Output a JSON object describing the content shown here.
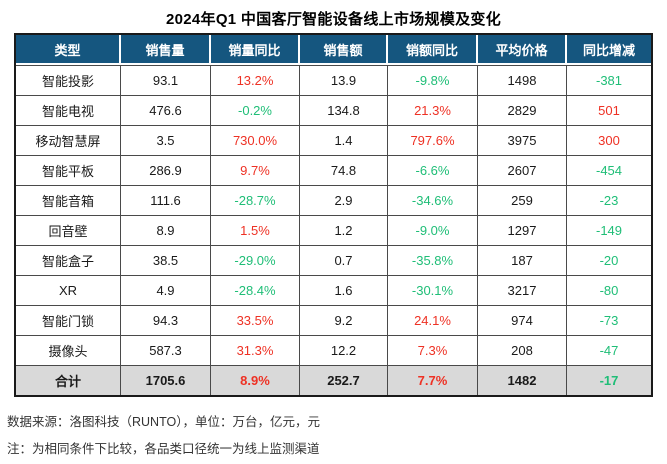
{
  "title": "2024年Q1 中国客厅智能设备线上市场规模及变化",
  "colors": {
    "header_bg": "#15567F",
    "header_text": "#FFFFFF",
    "increase_red": "#EE3124",
    "decrease_green": "#1FBE77",
    "total_row_bg": "#D9D9D9",
    "border_dark": "#1A1A1A"
  },
  "table": {
    "headers": [
      "类型",
      "销售量",
      "销量同比",
      "销售额",
      "销额同比",
      "平均价格",
      "同比增减"
    ],
    "rows": [
      {
        "cells": [
          "智能投影",
          "93.1",
          "13.2%",
          "13.9",
          "-9.8%",
          "1498",
          "-381"
        ],
        "colors": [
          "",
          "",
          "red",
          "",
          "green",
          "",
          "green"
        ]
      },
      {
        "cells": [
          "智能电视",
          "476.6",
          "-0.2%",
          "134.8",
          "21.3%",
          "2829",
          "501"
        ],
        "colors": [
          "",
          "",
          "green",
          "",
          "red",
          "",
          "red"
        ]
      },
      {
        "cells": [
          "移动智慧屏",
          "3.5",
          "730.0%",
          "1.4",
          "797.6%",
          "3975",
          "300"
        ],
        "colors": [
          "",
          "",
          "red",
          "",
          "red",
          "",
          "red"
        ]
      },
      {
        "cells": [
          "智能平板",
          "286.9",
          "9.7%",
          "74.8",
          "-6.6%",
          "2607",
          "-454"
        ],
        "colors": [
          "",
          "",
          "red",
          "",
          "green",
          "",
          "green"
        ]
      },
      {
        "cells": [
          "智能音箱",
          "111.6",
          "-28.7%",
          "2.9",
          "-34.6%",
          "259",
          "-23"
        ],
        "colors": [
          "",
          "",
          "green",
          "",
          "green",
          "",
          "green"
        ]
      },
      {
        "cells": [
          "回音壁",
          "8.9",
          "1.5%",
          "1.2",
          "-9.0%",
          "1297",
          "-149"
        ],
        "colors": [
          "",
          "",
          "red",
          "",
          "green",
          "",
          "green"
        ]
      },
      {
        "cells": [
          "智能盒子",
          "38.5",
          "-29.0%",
          "0.7",
          "-35.8%",
          "187",
          "-20"
        ],
        "colors": [
          "",
          "",
          "green",
          "",
          "green",
          "",
          "green"
        ]
      },
      {
        "cells": [
          "XR",
          "4.9",
          "-28.4%",
          "1.6",
          "-30.1%",
          "3217",
          "-80"
        ],
        "colors": [
          "",
          "",
          "green",
          "",
          "green",
          "",
          "green"
        ]
      },
      {
        "cells": [
          "智能门锁",
          "94.3",
          "33.5%",
          "9.2",
          "24.1%",
          "974",
          "-73"
        ],
        "colors": [
          "",
          "",
          "red",
          "",
          "red",
          "",
          "green"
        ]
      },
      {
        "cells": [
          "摄像头",
          "587.3",
          "31.3%",
          "12.2",
          "7.3%",
          "208",
          "-47"
        ],
        "colors": [
          "",
          "",
          "red",
          "",
          "red",
          "",
          "green"
        ]
      }
    ],
    "total_row": {
      "cells": [
        "合计",
        "1705.6",
        "8.9%",
        "252.7",
        "7.7%",
        "1482",
        "-17"
      ],
      "colors": [
        "",
        "",
        "red",
        "",
        "red",
        "",
        "green"
      ]
    }
  },
  "footer": {
    "source": "数据来源：洛图科技（RUNTO），单位：万台，亿元，元",
    "note": "注：为相同条件下比较，各品类口径统一为线上监测渠道"
  },
  "chart_data": {
    "type": "table",
    "title": "2024年Q1 中国客厅智能设备线上市场规模及变化",
    "columns": [
      "类型",
      "销售量",
      "销量同比",
      "销售额",
      "销额同比",
      "平均价格",
      "同比增减"
    ],
    "units": [
      "",
      "万台",
      "%",
      "亿元",
      "%",
      "元",
      "元"
    ],
    "rows": [
      [
        "智能投影",
        93.1,
        "13.2%",
        13.9,
        "-9.8%",
        1498,
        -381
      ],
      [
        "智能电视",
        476.6,
        "-0.2%",
        134.8,
        "21.3%",
        2829,
        501
      ],
      [
        "移动智慧屏",
        3.5,
        "730.0%",
        1.4,
        "797.6%",
        3975,
        300
      ],
      [
        "智能平板",
        286.9,
        "9.7%",
        74.8,
        "-6.6%",
        2607,
        -454
      ],
      [
        "智能音箱",
        111.6,
        "-28.7%",
        2.9,
        "-34.6%",
        259,
        -23
      ],
      [
        "回音壁",
        8.9,
        "1.5%",
        1.2,
        "-9.0%",
        1297,
        -149
      ],
      [
        "智能盒子",
        38.5,
        "-29.0%",
        0.7,
        "-35.8%",
        187,
        -20
      ],
      [
        "XR",
        4.9,
        "-28.4%",
        1.6,
        "-30.1%",
        3217,
        -80
      ],
      [
        "智能门锁",
        94.3,
        "33.5%",
        9.2,
        "24.1%",
        974,
        -73
      ],
      [
        "摄像头",
        587.3,
        "31.3%",
        12.2,
        "7.3%",
        208,
        -47
      ]
    ],
    "total": [
      "合计",
      1705.6,
      "8.9%",
      252.7,
      "7.7%",
      1482,
      -17
    ],
    "source": "洛图科技（RUNTO）",
    "note": "为相同条件下比较，各品类口径统一为线上监测渠道",
    "color_coding": "red = increase, green = decrease"
  }
}
